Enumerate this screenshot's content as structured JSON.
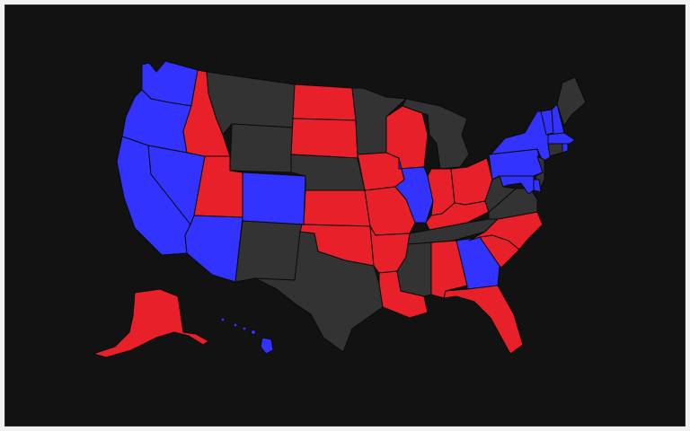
{
  "colors": {
    "background": "#121212",
    "blue": "#3333ff",
    "red": "#e8202a",
    "gray": "#333333"
  },
  "states": [
    {
      "abbr": "WA",
      "fill": "blue"
    },
    {
      "abbr": "OR",
      "fill": "blue"
    },
    {
      "abbr": "CA",
      "fill": "blue"
    },
    {
      "abbr": "NV",
      "fill": "blue"
    },
    {
      "abbr": "ID",
      "fill": "red"
    },
    {
      "abbr": "MT",
      "fill": "gray"
    },
    {
      "abbr": "WY",
      "fill": "gray"
    },
    {
      "abbr": "UT",
      "fill": "red"
    },
    {
      "abbr": "AZ",
      "fill": "blue"
    },
    {
      "abbr": "CO",
      "fill": "blue"
    },
    {
      "abbr": "NM",
      "fill": "gray"
    },
    {
      "abbr": "ND",
      "fill": "red"
    },
    {
      "abbr": "SD",
      "fill": "red"
    },
    {
      "abbr": "NE",
      "fill": "gray"
    },
    {
      "abbr": "KS",
      "fill": "red"
    },
    {
      "abbr": "OK",
      "fill": "red"
    },
    {
      "abbr": "TX",
      "fill": "gray"
    },
    {
      "abbr": "MN",
      "fill": "gray"
    },
    {
      "abbr": "IA",
      "fill": "red"
    },
    {
      "abbr": "MO",
      "fill": "red"
    },
    {
      "abbr": "AR",
      "fill": "red"
    },
    {
      "abbr": "LA",
      "fill": "red"
    },
    {
      "abbr": "WI",
      "fill": "red"
    },
    {
      "abbr": "IL",
      "fill": "blue"
    },
    {
      "abbr": "MI",
      "fill": "gray"
    },
    {
      "abbr": "IN",
      "fill": "red"
    },
    {
      "abbr": "OH",
      "fill": "red"
    },
    {
      "abbr": "KY",
      "fill": "red"
    },
    {
      "abbr": "TN",
      "fill": "gray"
    },
    {
      "abbr": "MS",
      "fill": "gray"
    },
    {
      "abbr": "AL",
      "fill": "red"
    },
    {
      "abbr": "GA",
      "fill": "blue"
    },
    {
      "abbr": "FL",
      "fill": "red"
    },
    {
      "abbr": "SC",
      "fill": "red"
    },
    {
      "abbr": "NC",
      "fill": "red"
    },
    {
      "abbr": "VA",
      "fill": "gray"
    },
    {
      "abbr": "WV",
      "fill": "gray"
    },
    {
      "abbr": "PA",
      "fill": "blue"
    },
    {
      "abbr": "NY",
      "fill": "blue"
    },
    {
      "abbr": "NJ",
      "fill": "gray"
    },
    {
      "abbr": "DE",
      "fill": "blue"
    },
    {
      "abbr": "MD",
      "fill": "blue"
    },
    {
      "abbr": "VT",
      "fill": "blue"
    },
    {
      "abbr": "NH",
      "fill": "blue"
    },
    {
      "abbr": "ME",
      "fill": "gray"
    },
    {
      "abbr": "MA",
      "fill": "blue"
    },
    {
      "abbr": "CT",
      "fill": "gray"
    },
    {
      "abbr": "RI",
      "fill": "blue"
    },
    {
      "abbr": "AK",
      "fill": "red"
    },
    {
      "abbr": "HI",
      "fill": "blue"
    }
  ]
}
